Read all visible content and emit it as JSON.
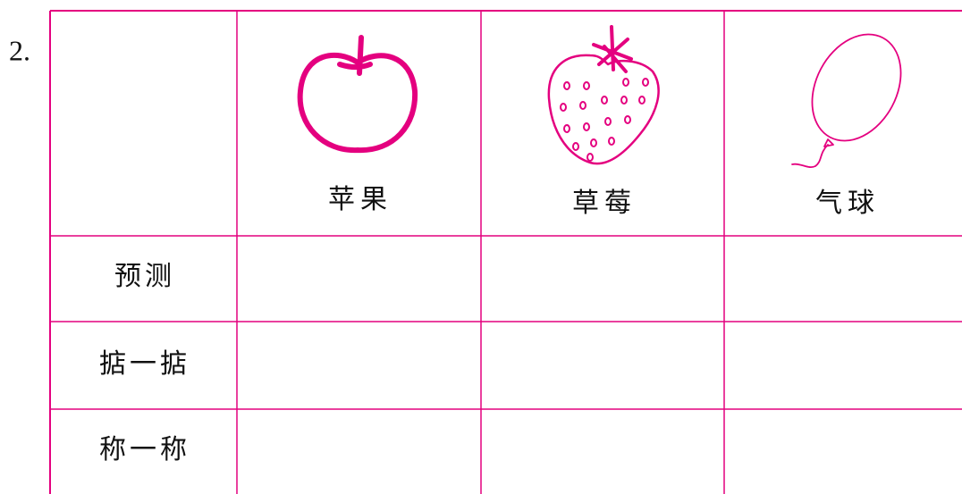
{
  "number": "2.",
  "table": {
    "columns": [
      "苹果",
      "草莓",
      "气球"
    ],
    "rows": [
      "预测",
      "掂一掂",
      "称一称"
    ]
  }
}
